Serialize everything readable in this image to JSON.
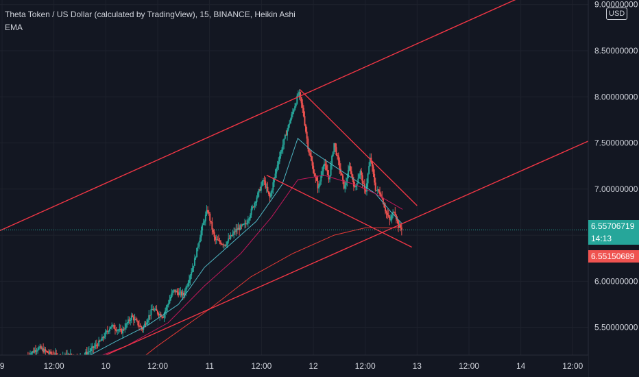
{
  "chart_data": {
    "type": "candlestick",
    "title": "Theta Token / US Dollar (calculated by TradingView), 15, BINANCE, Heikin Ashi",
    "indicator": "EMA",
    "currency": "USD",
    "price_tag": "6.55706719",
    "countdown": "14:13",
    "ema_tag": "6.55150689",
    "ylim": [
      5.2,
      9.05
    ],
    "xlim": [
      -0.02,
      5.65
    ],
    "y_ticks": [
      "5.50000000",
      "6.00000000",
      "6.50000000",
      "7.00000000",
      "7.50000000",
      "8.00000000",
      "8.50000000",
      "9.00000000"
    ],
    "y_tick_values": [
      5.5,
      6.0,
      6.5,
      7.0,
      7.5,
      8.0,
      8.5,
      9.0
    ],
    "x_ticks": [
      {
        "label": "9",
        "t": 0.0
      },
      {
        "label": "12:00",
        "t": 0.5
      },
      {
        "label": "10",
        "t": 1.0
      },
      {
        "label": "12:00",
        "t": 1.5
      },
      {
        "label": "11",
        "t": 2.0
      },
      {
        "label": "12:00",
        "t": 2.5
      },
      {
        "label": "12",
        "t": 3.0
      },
      {
        "label": "12:00",
        "t": 3.5
      },
      {
        "label": "13",
        "t": 4.0
      },
      {
        "label": "12:00",
        "t": 4.5
      },
      {
        "label": "14",
        "t": 5.0
      },
      {
        "label": "12:00",
        "t": 5.5
      }
    ],
    "price_path": [
      [
        0.25,
        5.2
      ],
      [
        0.35,
        5.28
      ],
      [
        0.45,
        5.22
      ],
      [
        0.55,
        5.18
      ],
      [
        0.65,
        5.2
      ],
      [
        0.75,
        5.17
      ],
      [
        0.85,
        5.25
      ],
      [
        0.95,
        5.35
      ],
      [
        1.05,
        5.52
      ],
      [
        1.15,
        5.45
      ],
      [
        1.25,
        5.62
      ],
      [
        1.35,
        5.48
      ],
      [
        1.45,
        5.7
      ],
      [
        1.55,
        5.62
      ],
      [
        1.65,
        5.9
      ],
      [
        1.75,
        5.85
      ],
      [
        1.85,
        6.2
      ],
      [
        1.92,
        6.55
      ],
      [
        1.98,
        6.78
      ],
      [
        2.05,
        6.45
      ],
      [
        2.15,
        6.4
      ],
      [
        2.25,
        6.55
      ],
      [
        2.35,
        6.62
      ],
      [
        2.45,
        6.9
      ],
      [
        2.52,
        7.1
      ],
      [
        2.58,
        6.9
      ],
      [
        2.66,
        7.3
      ],
      [
        2.75,
        7.65
      ],
      [
        2.82,
        7.9
      ],
      [
        2.86,
        8.05
      ],
      [
        2.9,
        7.85
      ],
      [
        2.95,
        7.45
      ],
      [
        3.0,
        7.2
      ],
      [
        3.05,
        7.0
      ],
      [
        3.1,
        7.3
      ],
      [
        3.15,
        7.1
      ],
      [
        3.2,
        7.5
      ],
      [
        3.25,
        7.25
      ],
      [
        3.3,
        7.0
      ],
      [
        3.35,
        7.25
      ],
      [
        3.4,
        7.0
      ],
      [
        3.45,
        7.2
      ],
      [
        3.5,
        6.95
      ],
      [
        3.55,
        7.35
      ],
      [
        3.6,
        7.0
      ],
      [
        3.65,
        6.95
      ],
      [
        3.7,
        6.75
      ],
      [
        3.74,
        6.65
      ],
      [
        3.78,
        6.78
      ],
      [
        3.82,
        6.6
      ],
      [
        3.86,
        6.56
      ]
    ],
    "ema_short": [
      [
        0.85,
        5.2
      ],
      [
        1.1,
        5.35
      ],
      [
        1.4,
        5.52
      ],
      [
        1.7,
        5.75
      ],
      [
        1.95,
        6.15
      ],
      [
        2.2,
        6.4
      ],
      [
        2.45,
        6.65
      ],
      [
        2.7,
        7.05
      ],
      [
        2.85,
        7.55
      ],
      [
        3.0,
        7.4
      ],
      [
        3.2,
        7.25
      ],
      [
        3.4,
        7.1
      ],
      [
        3.6,
        6.95
      ],
      [
        3.75,
        6.75
      ],
      [
        3.86,
        6.62
      ]
    ],
    "ema_medium": [
      [
        0.85,
        5.15
      ],
      [
        1.2,
        5.3
      ],
      [
        1.6,
        5.55
      ],
      [
        1.95,
        5.95
      ],
      [
        2.3,
        6.3
      ],
      [
        2.6,
        6.7
      ],
      [
        2.85,
        7.1
      ],
      [
        3.1,
        7.15
      ],
      [
        3.4,
        7.05
      ],
      [
        3.6,
        6.95
      ],
      [
        3.86,
        6.78
      ]
    ],
    "ema_long": [
      [
        1.1,
        4.95
      ],
      [
        1.5,
        5.3
      ],
      [
        2.0,
        5.7
      ],
      [
        2.4,
        6.05
      ],
      [
        2.8,
        6.3
      ],
      [
        3.2,
        6.5
      ],
      [
        3.5,
        6.58
      ],
      [
        3.86,
        6.58
      ]
    ],
    "trendlines": [
      {
        "name": "upper-channel",
        "from": [
          -0.02,
          6.55
        ],
        "to": [
          5.0,
          9.08
        ]
      },
      {
        "name": "lower-channel",
        "from": [
          1.0,
          5.2
        ],
        "to": [
          5.65,
          7.52
        ]
      },
      {
        "name": "wedge-top",
        "from": [
          2.87,
          8.08
        ],
        "to": [
          4.0,
          6.82
        ]
      },
      {
        "name": "wedge-bottom",
        "from": [
          2.55,
          7.15
        ],
        "to": [
          3.95,
          6.37
        ]
      }
    ],
    "current_price": 6.55706719
  }
}
